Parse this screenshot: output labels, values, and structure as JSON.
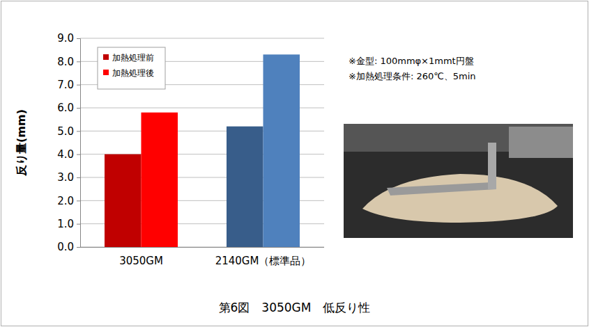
{
  "chart_data": {
    "type": "bar",
    "title": "第6図　3050GM　低反り性",
    "y_label": "反り量(mm)",
    "categories": [
      "3050GM",
      "2140GM（標準品）"
    ],
    "series": [
      {
        "name": "加熱処理前",
        "color": "#c00000",
        "colors": [
          "#c00000",
          "#385d8a"
        ],
        "values": [
          4.0,
          5.2
        ]
      },
      {
        "name": "加熱処理後",
        "color": "#ff0000",
        "colors": [
          "#ff0000",
          "#4f81bd"
        ],
        "values": [
          5.8,
          8.3
        ]
      }
    ],
    "ylim": [
      0,
      9
    ],
    "yticks": [
      {
        "value": 0,
        "label": "0.0"
      },
      {
        "value": 1,
        "label": "1.0"
      },
      {
        "value": 2,
        "label": "2.0"
      },
      {
        "value": 3,
        "label": "3.0"
      },
      {
        "value": 4,
        "label": "4.0"
      },
      {
        "value": 5,
        "label": "5.0"
      },
      {
        "value": 6,
        "label": "6.0"
      },
      {
        "value": 7,
        "label": "7.0"
      },
      {
        "value": 8,
        "label": "8.0"
      },
      {
        "value": 9,
        "label": "9.0"
      }
    ],
    "grid": true,
    "legend": "upper left",
    "annotations": [
      "※金型: 100mmφ×1mmt円盤",
      "※加熱処理条件: 260℃、5min"
    ]
  }
}
